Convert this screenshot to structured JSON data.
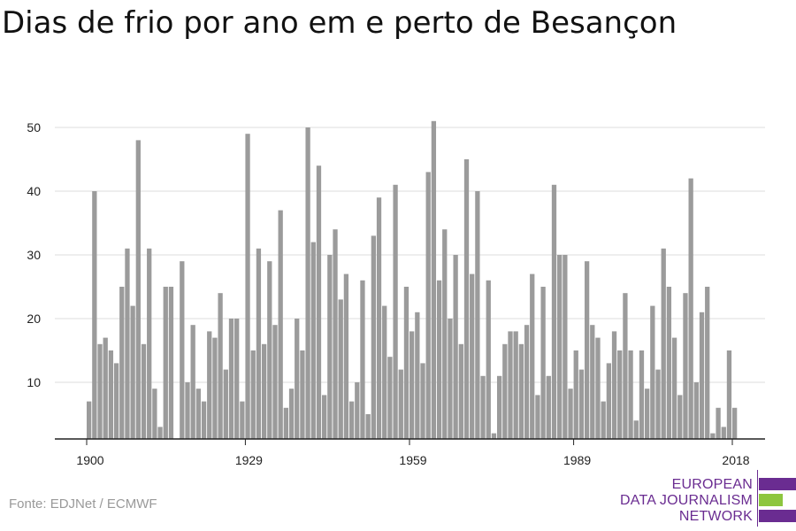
{
  "title": "Dias de frio por ano em e perto de Besançon",
  "source": "Fonte: EDJNet / ECMWF",
  "logo": {
    "line1": "EUROPEAN",
    "line2": "DATA JOURNALISM",
    "line3": "NETWORK",
    "colors": {
      "purple": "#6a2c91",
      "green": "#8dc63f"
    }
  },
  "chart_data": {
    "type": "bar",
    "title": "Dias de frio por ano em e perto de Besançon",
    "xlabel": "",
    "ylabel": "",
    "x_start": 1900,
    "x_end": 2020,
    "xticks": [
      1900,
      1929,
      1959,
      1989,
      2018
    ],
    "yticks": [
      10,
      20,
      30,
      40,
      50
    ],
    "ylim": [
      1,
      52
    ],
    "grid": true,
    "bar_color": "#9b9b9b",
    "values": [
      7,
      40,
      16,
      17,
      15,
      13,
      25,
      31,
      22,
      48,
      16,
      31,
      9,
      3,
      25,
      25,
      0,
      29,
      10,
      19,
      9,
      7,
      18,
      17,
      24,
      12,
      20,
      20,
      7,
      49,
      15,
      31,
      16,
      29,
      19,
      37,
      6,
      9,
      20,
      15,
      50,
      32,
      44,
      8,
      30,
      34,
      23,
      27,
      7,
      10,
      26,
      5,
      33,
      39,
      22,
      14,
      41,
      12,
      25,
      18,
      21,
      13,
      43,
      51,
      26,
      34,
      20,
      30,
      16,
      45,
      27,
      40,
      11,
      26,
      2,
      11,
      16,
      18,
      18,
      16,
      19,
      27,
      8,
      25,
      11,
      41,
      30,
      30,
      9,
      15,
      12,
      29,
      19,
      17,
      7,
      13,
      18,
      15,
      24,
      15,
      4,
      15,
      9,
      22,
      12,
      31,
      25,
      17,
      8,
      24,
      42,
      10,
      21,
      25,
      2,
      6,
      3,
      15,
      6,
      0,
      0
    ]
  }
}
